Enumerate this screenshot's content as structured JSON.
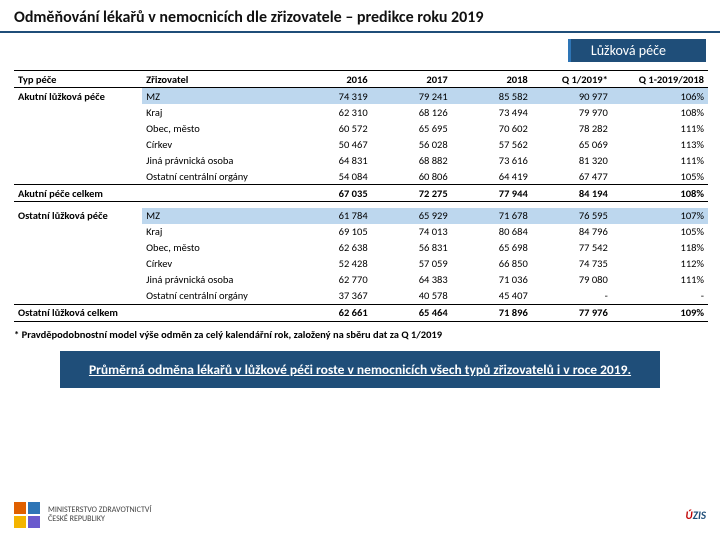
{
  "title": "Odměňování lékařů v nemocnicích dle zřizovatele – predikce roku 2019",
  "badge": "Lůžková péče",
  "columns": [
    "Typ péče",
    "Zřizovatel",
    "2016",
    "2017",
    "2018",
    "Q 1/2019*",
    "Q 1-2019/2018"
  ],
  "section1": {
    "label": "Akutní lůžková péče",
    "rows": [
      {
        "z": "MZ",
        "v": [
          "74 319",
          "79 241",
          "85 582",
          "90 977",
          "106%"
        ],
        "hl": true
      },
      {
        "z": "Kraj",
        "v": [
          "62 310",
          "68 126",
          "73 494",
          "79 970",
          "108%"
        ]
      },
      {
        "z": "Obec, město",
        "v": [
          "60 572",
          "65 695",
          "70 602",
          "78 282",
          "111%"
        ]
      },
      {
        "z": "Církev",
        "v": [
          "50 467",
          "56 028",
          "57 562",
          "65 069",
          "113%"
        ]
      },
      {
        "z": "Jiná právnická osoba",
        "v": [
          "64 831",
          "68 882",
          "73 616",
          "81 320",
          "111%"
        ]
      },
      {
        "z": "Ostatní centrální orgány",
        "v": [
          "54 084",
          "60 806",
          "64 419",
          "67 477",
          "105%"
        ]
      }
    ],
    "total": {
      "label": "Akutní péče celkem",
      "v": [
        "67 035",
        "72 275",
        "77 944",
        "84 194",
        "108%"
      ]
    }
  },
  "section2": {
    "label": "Ostatní lůžková péče",
    "rows": [
      {
        "z": "MZ",
        "v": [
          "61 784",
          "65 929",
          "71 678",
          "76 595",
          "107%"
        ],
        "hl": true
      },
      {
        "z": "Kraj",
        "v": [
          "69 105",
          "74 013",
          "80 684",
          "84 796",
          "105%"
        ]
      },
      {
        "z": "Obec, město",
        "v": [
          "62 638",
          "56 831",
          "65 698",
          "77 542",
          "118%"
        ]
      },
      {
        "z": "Církev",
        "v": [
          "52 428",
          "57 059",
          "66 850",
          "74 735",
          "112%"
        ]
      },
      {
        "z": "Jiná právnická osoba",
        "v": [
          "62 770",
          "64 383",
          "71 036",
          "79 080",
          "111%"
        ]
      },
      {
        "z": "Ostatní centrální orgány",
        "v": [
          "37 367",
          "40 578",
          "45 407",
          "-",
          "-"
        ]
      }
    ],
    "total": {
      "label": "Ostatní lůžková celkem",
      "v": [
        "62 661",
        "65 464",
        "71 896",
        "77 976",
        "109%"
      ]
    }
  },
  "footnote": "* Pravděpodobnostní model výše odměn za celý kalendářní rok, založený na sběru dat za Q 1/2019",
  "callout": "Průměrná odměna lékařů v lůžkové péči roste v nemocnicích všech typů zřizovatelů i v roce 2019.",
  "logo_left": {
    "line1": "MINISTERSTVO ZDRAVOTNICTVÍ",
    "line2": "ČESKÉ REPUBLIKY"
  },
  "logo_right": "ÚZIS"
}
